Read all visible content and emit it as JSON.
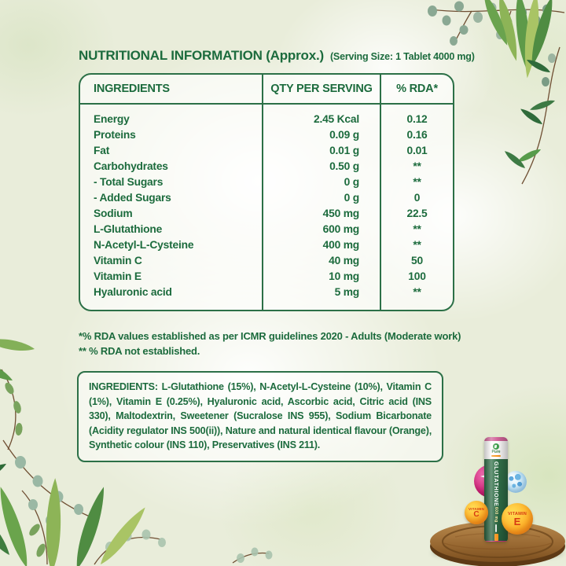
{
  "colors": {
    "text_green": "#1c6b3d",
    "table_border_green": "#2c7047",
    "background_sage": "#e9edda",
    "magenta": "#cf2f7b",
    "orange": "#f7941d",
    "tube_label_green": "#2c6a44"
  },
  "header": {
    "title": "NUTRITIONAL INFORMATION (Approx.)",
    "serving": "(Serving Size: 1 Tablet 4000 mg)"
  },
  "table": {
    "headers": [
      "INGREDIENTS",
      "QTY PER SERVING",
      "% RDA*"
    ],
    "rows": [
      {
        "name": "Energy",
        "qty": "2.45 Kcal",
        "rda": "0.12"
      },
      {
        "name": "Proteins",
        "qty": "0.09 g",
        "rda": "0.16"
      },
      {
        "name": "Fat",
        "qty": "0.01 g",
        "rda": "0.01"
      },
      {
        "name": "Carbohydrates",
        "qty": "0.50 g",
        "rda": "**"
      },
      {
        "name": "- Total Sugars",
        "qty": "0 g",
        "rda": "**"
      },
      {
        "name": "- Added Sugars",
        "qty": "0 g",
        "rda": "0"
      },
      {
        "name": "Sodium",
        "qty": "450 mg",
        "rda": "22.5"
      },
      {
        "name": "L-Glutathione",
        "qty": "600 mg",
        "rda": "**"
      },
      {
        "name": "N-Acetyl-L-Cysteine",
        "qty": "400 mg",
        "rda": "**"
      },
      {
        "name": "Vitamin C",
        "qty": "40 mg",
        "rda": "50"
      },
      {
        "name": "Vitamin E",
        "qty": "10 mg",
        "rda": "100"
      },
      {
        "name": "Hyaluronic acid",
        "qty": "5 mg",
        "rda": "**"
      }
    ]
  },
  "footnotes": [
    "*% RDA values established as per ICMR guidelines 2020 - Adults (Moderate work)",
    "** % RDA not established."
  ],
  "ingredients_box": {
    "text": "INGREDIENTS: L-Glutathione (15%), N-Acetyl-L-Cysteine (10%), Vitamin C (1%), Vitamin E (0.25%), Hyaluronic acid, Ascorbic acid, Citric acid (INS 330), Maltodextrin, Sweetener (Sucralose INS 955), Sodium Bicarbonate (Acidity regulator INS 500(ii)), Nature and natural identical flavour (Orange), Synthetic colour (INS 110), Preservatives (INS 211)."
  },
  "product": {
    "brand": "Pure",
    "tube_title": "GLUTATHIONE",
    "tube_dose": "600 mg",
    "vitamin_c_ball": {
      "line1": "VITAMIN",
      "line2": "C"
    },
    "vitamin_e_ball": {
      "line1": "VITAMIN",
      "line2": "E"
    }
  }
}
